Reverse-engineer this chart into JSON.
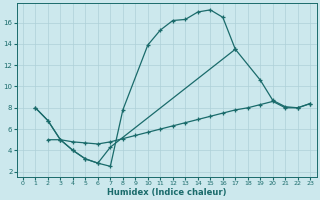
{
  "bg_color": "#cce8ed",
  "grid_color": "#aed0d8",
  "line_color": "#1a6b6b",
  "xlabel": "Humidex (Indice chaleur)",
  "xlim": [
    -0.5,
    23.5
  ],
  "ylim": [
    1.5,
    17.8
  ],
  "xticks": [
    0,
    1,
    2,
    3,
    4,
    5,
    6,
    7,
    8,
    9,
    10,
    11,
    12,
    13,
    14,
    15,
    16,
    17,
    18,
    19,
    20,
    21,
    22,
    23
  ],
  "yticks": [
    2,
    4,
    6,
    8,
    10,
    12,
    14,
    16
  ],
  "line1_x": [
    1,
    2,
    3,
    4,
    5,
    6,
    7,
    8,
    10,
    11,
    12,
    13,
    14,
    15,
    16,
    17
  ],
  "line1_y": [
    8.0,
    6.8,
    5.0,
    4.0,
    3.2,
    2.8,
    2.5,
    7.8,
    13.9,
    15.3,
    16.2,
    16.3,
    17.0,
    17.2,
    16.5,
    13.5
  ],
  "line2_x": [
    1,
    2,
    3,
    4,
    5,
    6,
    7,
    17,
    19,
    20,
    21,
    22,
    23
  ],
  "line2_y": [
    8.0,
    6.8,
    5.0,
    4.0,
    3.2,
    2.8,
    4.3,
    13.5,
    10.6,
    8.7,
    8.1,
    8.0,
    8.4
  ],
  "line3_x": [
    2,
    3,
    4,
    5,
    6,
    7,
    8,
    9,
    10,
    11,
    12,
    13,
    14,
    15,
    16,
    17,
    18,
    19,
    20,
    21,
    22,
    23
  ],
  "line3_y": [
    5.0,
    5.0,
    4.8,
    4.7,
    4.6,
    4.8,
    5.1,
    5.4,
    5.7,
    6.0,
    6.3,
    6.6,
    6.9,
    7.2,
    7.5,
    7.8,
    8.0,
    8.3,
    8.6,
    8.0,
    8.0,
    8.4
  ]
}
